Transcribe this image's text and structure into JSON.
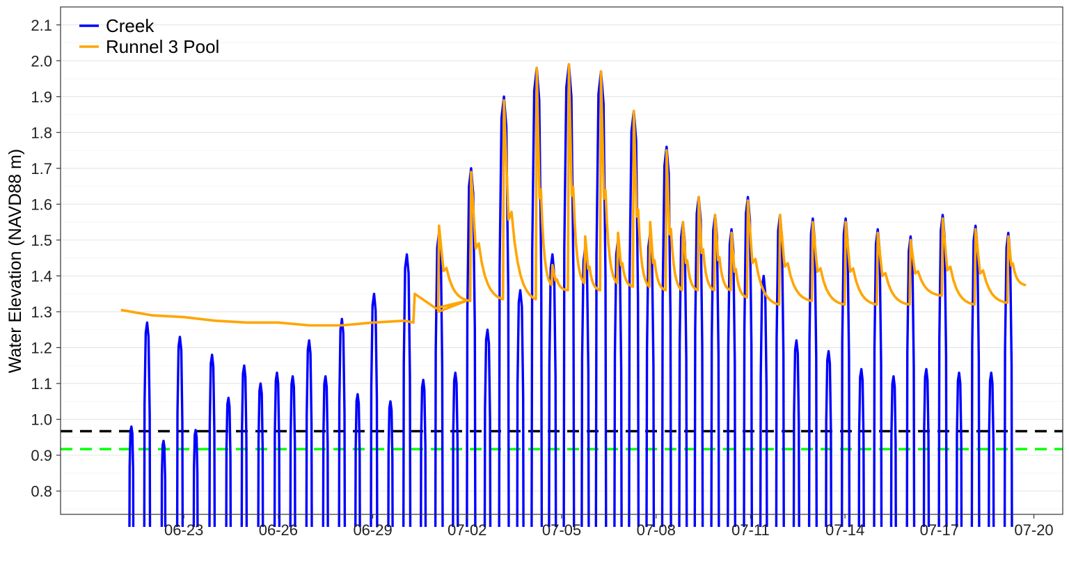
{
  "chart_data": {
    "type": "line",
    "title": "",
    "xlabel": "",
    "ylabel": "Water Elevation (NAVD88 m)",
    "xlim": [
      "2023-06-19T02:00",
      "2023-07-20T22:00"
    ],
    "ylim": [
      0.735,
      2.15
    ],
    "x_ticks": [
      "06-23",
      "06-26",
      "06-29",
      "07-02",
      "07-05",
      "07-08",
      "07-11",
      "07-14",
      "07-17",
      "07-20"
    ],
    "y_ticks": [
      "0.8",
      "0.9",
      "1.0",
      "1.1",
      "1.2",
      "1.3",
      "1.4",
      "1.5",
      "1.6",
      "1.7",
      "1.8",
      "1.9",
      "2.0",
      "2.1"
    ],
    "grid": true,
    "legend": {
      "position": "top-left",
      "entries": [
        "Creek",
        "Runnel 3 Pool"
      ]
    },
    "series": [
      {
        "name": "Creek",
        "color": "#0000ff",
        "high_tides": [
          [
            "2023-06-21T08:00",
            0.98
          ],
          [
            "2023-06-21T20:00",
            1.27
          ],
          [
            "2023-06-22T08:30",
            0.94
          ],
          [
            "2023-06-22T21:00",
            1.23
          ],
          [
            "2023-06-23T09:00",
            0.97
          ],
          [
            "2023-06-23T21:30",
            1.18
          ],
          [
            "2023-06-24T10:00",
            1.06
          ],
          [
            "2023-06-24T22:00",
            1.15
          ],
          [
            "2023-06-25T10:30",
            1.1
          ],
          [
            "2023-06-25T23:00",
            1.13
          ],
          [
            "2023-06-26T11:00",
            1.12
          ],
          [
            "2023-06-26T23:30",
            1.22
          ],
          [
            "2023-06-27T12:00",
            1.12
          ],
          [
            "2023-06-28T00:30",
            1.28
          ],
          [
            "2023-06-28T12:30",
            1.07
          ],
          [
            "2023-06-29T01:00",
            1.35
          ],
          [
            "2023-06-29T13:30",
            1.05
          ],
          [
            "2023-06-30T02:00",
            1.46
          ],
          [
            "2023-06-30T14:30",
            1.11
          ],
          [
            "2023-07-01T02:30",
            1.52
          ],
          [
            "2023-07-01T15:00",
            1.13
          ],
          [
            "2023-07-02T03:00",
            1.7
          ],
          [
            "2023-07-02T15:30",
            1.25
          ],
          [
            "2023-07-03T04:00",
            1.9
          ],
          [
            "2023-07-03T16:30",
            1.36
          ],
          [
            "2023-07-04T05:00",
            1.98
          ],
          [
            "2023-07-04T17:00",
            1.46
          ],
          [
            "2023-07-05T05:30",
            1.99
          ],
          [
            "2023-07-05T18:00",
            1.48
          ],
          [
            "2023-07-06T06:00",
            1.97
          ],
          [
            "2023-07-06T19:00",
            1.5
          ],
          [
            "2023-07-07T07:00",
            1.86
          ],
          [
            "2023-07-07T19:30",
            1.52
          ],
          [
            "2023-07-08T08:00",
            1.76
          ],
          [
            "2023-07-08T20:30",
            1.55
          ],
          [
            "2023-07-09T08:30",
            1.62
          ],
          [
            "2023-07-09T21:00",
            1.57
          ],
          [
            "2023-07-10T09:30",
            1.53
          ],
          [
            "2023-07-10T22:00",
            1.62
          ],
          [
            "2023-07-11T10:00",
            1.4
          ],
          [
            "2023-07-11T22:30",
            1.57
          ],
          [
            "2023-07-12T11:00",
            1.22
          ],
          [
            "2023-07-12T23:30",
            1.56
          ],
          [
            "2023-07-13T11:30",
            1.19
          ],
          [
            "2023-07-14T00:30",
            1.56
          ],
          [
            "2023-07-14T12:30",
            1.14
          ],
          [
            "2023-07-15T01:00",
            1.53
          ],
          [
            "2023-07-15T13:00",
            1.12
          ],
          [
            "2023-07-16T02:00",
            1.51
          ],
          [
            "2023-07-16T14:00",
            1.14
          ],
          [
            "2023-07-17T02:30",
            1.57
          ],
          [
            "2023-07-17T15:00",
            1.13
          ],
          [
            "2023-07-18T03:30",
            1.54
          ],
          [
            "2023-07-18T15:30",
            1.13
          ],
          [
            "2023-07-19T04:30",
            1.52
          ]
        ]
      },
      {
        "name": "Runnel 3 Pool",
        "color": "#ffa500",
        "baseline": [
          [
            "2023-06-21T00:00",
            1.305
          ],
          [
            "2023-06-22T00:00",
            1.29
          ],
          [
            "2023-06-23T00:00",
            1.285
          ],
          [
            "2023-06-24T00:00",
            1.275
          ],
          [
            "2023-06-25T00:00",
            1.27
          ],
          [
            "2023-06-26T00:00",
            1.27
          ],
          [
            "2023-06-27T00:00",
            1.262
          ],
          [
            "2023-06-28T00:00",
            1.262
          ],
          [
            "2023-06-29T00:00",
            1.27
          ],
          [
            "2023-06-30T00:00",
            1.275
          ],
          [
            "2023-06-30T07:00",
            1.27
          ],
          [
            "2023-06-30T08:00",
            1.35
          ],
          [
            "2023-07-01T00:00",
            1.31
          ],
          [
            "2023-07-01T23:00",
            1.33
          ]
        ],
        "peaks": [
          [
            "2023-07-01T02:30",
            1.54,
            1.3
          ],
          [
            "2023-07-02T03:00",
            1.69,
            1.33
          ],
          [
            "2023-07-03T04:00",
            1.89,
            1.335
          ],
          [
            "2023-07-04T05:00",
            1.98,
            1.335
          ],
          [
            "2023-07-04T17:00",
            1.43,
            1.375
          ],
          [
            "2023-07-05T05:30",
            1.99,
            1.36
          ],
          [
            "2023-07-05T18:00",
            1.51,
            1.38
          ],
          [
            "2023-07-06T06:00",
            1.97,
            1.36
          ],
          [
            "2023-07-06T19:00",
            1.52,
            1.38
          ],
          [
            "2023-07-07T07:00",
            1.86,
            1.37
          ],
          [
            "2023-07-07T19:30",
            1.55,
            1.37
          ],
          [
            "2023-07-08T08:00",
            1.75,
            1.36
          ],
          [
            "2023-07-08T20:30",
            1.55,
            1.36
          ],
          [
            "2023-07-09T08:30",
            1.62,
            1.36
          ],
          [
            "2023-07-09T21:00",
            1.57,
            1.36
          ],
          [
            "2023-07-10T09:30",
            1.52,
            1.36
          ],
          [
            "2023-07-10T22:00",
            1.61,
            1.34
          ],
          [
            "2023-07-11T22:30",
            1.57,
            1.32
          ],
          [
            "2023-07-12T23:30",
            1.55,
            1.33
          ],
          [
            "2023-07-14T00:30",
            1.55,
            1.32
          ],
          [
            "2023-07-15T01:00",
            1.52,
            1.32
          ],
          [
            "2023-07-16T02:00",
            1.5,
            1.32
          ],
          [
            "2023-07-17T02:30",
            1.56,
            1.345
          ],
          [
            "2023-07-18T03:30",
            1.53,
            1.32
          ],
          [
            "2023-07-19T04:30",
            1.51,
            1.325
          ]
        ],
        "end": [
          "2023-07-19T16:00",
          1.375
        ]
      }
    ],
    "reference_lines": [
      {
        "value": 0.967,
        "color": "#000000",
        "style": "dashed"
      },
      {
        "value": 0.917,
        "color": "#00ff00",
        "style": "dashed"
      }
    ]
  }
}
